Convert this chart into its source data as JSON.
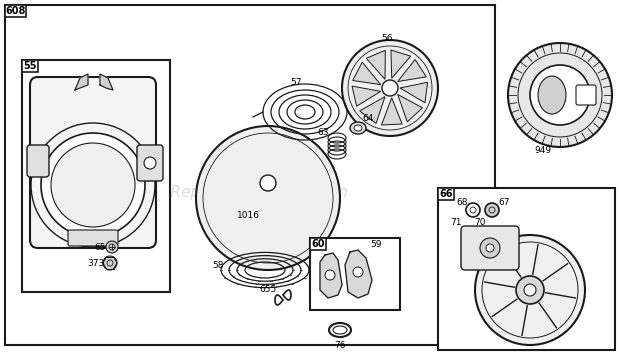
{
  "bg_color": "#ffffff",
  "line_color": "#1a1a1a",
  "fill_light": "#f0f0f0",
  "fill_mid": "#d8d8d8",
  "fill_dark": "#888888",
  "watermark_text": "eReplacementParts.com",
  "watermark_color": "#cccccc",
  "figsize": [
    6.2,
    3.6
  ],
  "dpi": 100
}
